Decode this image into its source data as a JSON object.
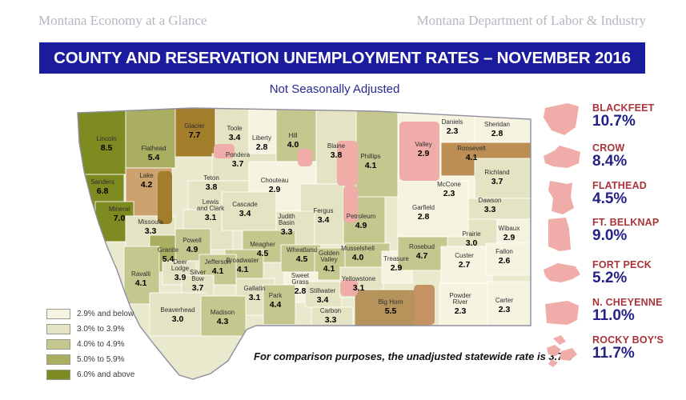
{
  "header": {
    "left": "Montana Economy at a Glance",
    "right": "Montana Department of Labor & Industry"
  },
  "banner": {
    "title": "COUNTY AND RESERVATION UNEMPLOYMENT RATES – NOVEMBER 2016"
  },
  "subtitle": "Not Seasonally Adjusted",
  "footnote": "For comparison purposes, the unadjusted statewide rate is 3.7%",
  "legend": [
    {
      "label": "2.9% and below",
      "color": "#f6f4e0"
    },
    {
      "label": "3.0% to 3.9%",
      "color": "#e4e4c4"
    },
    {
      "label": "4.0% to 4.9%",
      "color": "#c5c88e"
    },
    {
      "label": "5.0% to 5.9%",
      "color": "#a9ae61"
    },
    {
      "label": "6.0% and above",
      "color": "#7e8b21"
    }
  ],
  "colors": {
    "banner_bg": "#1b1b9e",
    "banner_text": "#ffffff",
    "subtitle_text": "#28288f",
    "header_text": "#b7b7c1",
    "state_base": "#e9e9cd",
    "state_border": "#8e8e9e",
    "reservation_label": "#a93439",
    "reservation_value": "#232387",
    "reservation_shape": "#efaca8",
    "overlays": {
      "pink": "#efaca8",
      "glacier": "#a17d2c",
      "roosevelt": "#bd8f55",
      "lake": "#cda26e",
      "bighorn": "#b7935c",
      "ncheyenne": "#c49263"
    }
  },
  "chart_data": {
    "type": "heatmap",
    "subtype": "choropleth-map-of-montana",
    "title": "COUNTY AND RESERVATION UNEMPLOYMENT RATES – NOVEMBER 2016",
    "subtitle": "Not Seasonally Adjusted",
    "unit": "percent unemployment rate, not seasonally adjusted",
    "statewide_note": "For comparison purposes, the unadjusted statewide rate is 3.7%",
    "legend_buckets": [
      "2.9% and below",
      "3.0% to 3.9%",
      "4.0% to 4.9%",
      "5.0% to 5.9%",
      "6.0% and above"
    ],
    "counties": [
      {
        "name": "Lincoln",
        "rate": "8.5",
        "bucket": "6.0% and above"
      },
      {
        "name": "Flathead",
        "rate": "5.4",
        "bucket": "5.0% to 5.9%"
      },
      {
        "name": "Glacier",
        "rate": "7.7",
        "bucket": "6.0% and above",
        "overlay": "glacier"
      },
      {
        "name": "Toole",
        "rate": "3.4",
        "bucket": "3.0% to 3.9%"
      },
      {
        "name": "Liberty",
        "rate": "2.8",
        "bucket": "2.9% and below"
      },
      {
        "name": "Hill",
        "rate": "4.0",
        "bucket": "4.0% to 4.9%"
      },
      {
        "name": "Blaine",
        "rate": "3.8",
        "bucket": "3.0% to 3.9%"
      },
      {
        "name": "Phillips",
        "rate": "4.1",
        "bucket": "4.0% to 4.9%"
      },
      {
        "name": "Valley",
        "rate": "2.9",
        "bucket": "2.9% and below"
      },
      {
        "name": "Daniels",
        "rate": "2.3",
        "bucket": "2.9% and below"
      },
      {
        "name": "Sheridan",
        "rate": "2.8",
        "bucket": "2.9% and below"
      },
      {
        "name": "Roosevelt",
        "rate": "4.1",
        "bucket": "4.0% to 4.9%",
        "overlay": "roosevelt"
      },
      {
        "name": "Richland",
        "rate": "3.7",
        "bucket": "3.0% to 3.9%"
      },
      {
        "name": "McCone",
        "rate": "2.3",
        "bucket": "2.9% and below"
      },
      {
        "name": "Dawson",
        "rate": "3.3",
        "bucket": "3.0% to 3.9%"
      },
      {
        "name": "Wibaux",
        "rate": "2.9",
        "bucket": "2.9% and below"
      },
      {
        "name": "Prairie",
        "rate": "3.0",
        "bucket": "3.0% to 3.9%"
      },
      {
        "name": "Sanders",
        "rate": "6.8",
        "bucket": "6.0% and above"
      },
      {
        "name": "Lake",
        "rate": "4.2",
        "bucket": "4.0% to 4.9%",
        "overlay": "lake"
      },
      {
        "name": "Pondera",
        "rate": "3.7",
        "bucket": "3.0% to 3.9%"
      },
      {
        "name": "Teton",
        "rate": "3.8",
        "bucket": "3.0% to 3.9%"
      },
      {
        "name": "Chouteau",
        "rate": "2.9",
        "bucket": "2.9% and below"
      },
      {
        "name": "Fergus",
        "rate": "3.4",
        "bucket": "3.0% to 3.9%"
      },
      {
        "name": "Petroleum",
        "rate": "4.9",
        "bucket": "4.0% to 4.9%"
      },
      {
        "name": "Garfield",
        "rate": "2.8",
        "bucket": "2.9% and below"
      },
      {
        "name": "Mineral",
        "rate": "7.0",
        "bucket": "6.0% and above"
      },
      {
        "name": "Missoula",
        "rate": "3.3",
        "bucket": "3.0% to 3.9%"
      },
      {
        "name": "Lewis and Clark",
        "rate": "3.1",
        "bucket": "3.0% to 3.9%"
      },
      {
        "name": "Cascade",
        "rate": "3.4",
        "bucket": "3.0% to 3.9%"
      },
      {
        "name": "Judith Basin",
        "rate": "3.3",
        "bucket": "3.0% to 3.9%"
      },
      {
        "name": "Granite",
        "rate": "5.4",
        "bucket": "5.0% to 5.9%"
      },
      {
        "name": "Powell",
        "rate": "4.9",
        "bucket": "4.0% to 4.9%"
      },
      {
        "name": "Meagher",
        "rate": "4.5",
        "bucket": "4.0% to 4.9%"
      },
      {
        "name": "Broadwater",
        "rate": "4.1",
        "bucket": "4.0% to 4.9%"
      },
      {
        "name": "Jefferson",
        "rate": "4.1",
        "bucket": "4.0% to 4.9%"
      },
      {
        "name": "Deer Lodge",
        "rate": "3.9",
        "bucket": "3.0% to 3.9%"
      },
      {
        "name": "Silver Bow",
        "rate": "3.7",
        "bucket": "3.0% to 3.9%"
      },
      {
        "name": "Ravalli",
        "rate": "4.1",
        "bucket": "4.0% to 4.9%"
      },
      {
        "name": "Wheatland",
        "rate": "4.5",
        "bucket": "4.0% to 4.9%"
      },
      {
        "name": "Golden Valley",
        "rate": "4.1",
        "bucket": "4.0% to 4.9%"
      },
      {
        "name": "Musselshell",
        "rate": "4.0",
        "bucket": "4.0% to 4.9%"
      },
      {
        "name": "Sweet Grass",
        "rate": "2.8",
        "bucket": "2.9% and below"
      },
      {
        "name": "Stillwater",
        "rate": "3.4",
        "bucket": "3.0% to 3.9%"
      },
      {
        "name": "Yellowstone",
        "rate": "3.1",
        "bucket": "3.0% to 3.9%"
      },
      {
        "name": "Gallatin",
        "rate": "3.1",
        "bucket": "3.0% to 3.9%"
      },
      {
        "name": "Park",
        "rate": "4.4",
        "bucket": "4.0% to 4.9%"
      },
      {
        "name": "Beaverhead",
        "rate": "3.0",
        "bucket": "3.0% to 3.9%"
      },
      {
        "name": "Madison",
        "rate": "4.3",
        "bucket": "4.0% to 4.9%"
      },
      {
        "name": "Carbon",
        "rate": "3.3",
        "bucket": "3.0% to 3.9%"
      },
      {
        "name": "Big Horn",
        "rate": "5.5",
        "bucket": "5.0% to 5.9%",
        "overlay": "bighorn"
      },
      {
        "name": "Treasure",
        "rate": "2.9",
        "bucket": "2.9% and below"
      },
      {
        "name": "Rosebud",
        "rate": "4.7",
        "bucket": "4.0% to 4.9%"
      },
      {
        "name": "Custer",
        "rate": "2.7",
        "bucket": "2.9% and below"
      },
      {
        "name": "Fallon",
        "rate": "2.6",
        "bucket": "2.9% and below"
      },
      {
        "name": "Powder River",
        "rate": "2.3",
        "bucket": "2.9% and below"
      },
      {
        "name": "Carter",
        "rate": "2.3",
        "bucket": "2.9% and below"
      }
    ],
    "reservations": [
      {
        "name": "BLACKFEET",
        "rate": "10.7"
      },
      {
        "name": "CROW",
        "rate": "8.4"
      },
      {
        "name": "FLATHEAD",
        "rate": "4.5"
      },
      {
        "name": "FT. BELKNAP",
        "rate": "9.0"
      },
      {
        "name": "FORT PECK",
        "rate": "5.2"
      },
      {
        "name": "N. CHEYENNE",
        "rate": "11.0"
      },
      {
        "name": "ROCKY BOY'S",
        "rate": "11.7"
      }
    ]
  }
}
